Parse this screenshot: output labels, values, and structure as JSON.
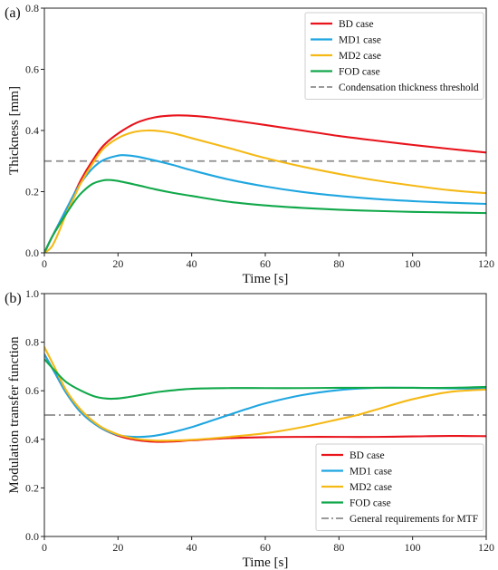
{
  "panels": [
    "(a)",
    "(b)"
  ],
  "chart_data": [
    {
      "type": "line",
      "panel_label": "(a)",
      "xlabel": "Time [s]",
      "ylabel": "Thickness [mm]",
      "xlim": [
        0,
        120
      ],
      "ylim": [
        0,
        0.8
      ],
      "xticks": [
        0,
        20,
        40,
        60,
        80,
        100,
        120
      ],
      "yticks": [
        0.0,
        0.2,
        0.4,
        0.6,
        0.8
      ],
      "xtick_labels": [
        "0",
        "20",
        "40",
        "60",
        "80",
        "100",
        "120"
      ],
      "ytick_labels": [
        "0.0",
        "0.2",
        "0.4",
        "0.6",
        "0.8"
      ],
      "grid": false,
      "legend_position": "top-right",
      "series": [
        {
          "name": "BD case",
          "color": "#e8131b",
          "dash": "",
          "x": [
            0,
            2,
            5,
            8,
            10,
            13,
            16,
            20,
            25,
            30,
            35,
            40,
            45,
            50,
            60,
            70,
            80,
            90,
            100,
            110,
            120
          ],
          "y": [
            0.0,
            0.05,
            0.12,
            0.19,
            0.24,
            0.3,
            0.35,
            0.39,
            0.425,
            0.443,
            0.449,
            0.448,
            0.443,
            0.435,
            0.418,
            0.4,
            0.382,
            0.367,
            0.353,
            0.34,
            0.328
          ]
        },
        {
          "name": "MD1 case",
          "color": "#1fa6e0",
          "dash": "",
          "x": [
            0,
            2,
            5,
            8,
            10,
            13,
            16,
            20,
            22,
            25,
            30,
            35,
            40,
            50,
            60,
            70,
            80,
            90,
            100,
            110,
            120
          ],
          "y": [
            0.0,
            0.05,
            0.12,
            0.19,
            0.23,
            0.275,
            0.303,
            0.318,
            0.319,
            0.315,
            0.302,
            0.287,
            0.27,
            0.24,
            0.217,
            0.199,
            0.186,
            0.176,
            0.169,
            0.164,
            0.16
          ]
        },
        {
          "name": "MD2 case",
          "color": "#f5b916",
          "dash": "",
          "x": [
            0,
            2,
            4,
            6,
            8,
            10,
            13,
            16,
            20,
            24,
            28,
            32,
            36,
            40,
            50,
            60,
            70,
            80,
            90,
            100,
            110,
            120
          ],
          "y": [
            0.0,
            0.02,
            0.07,
            0.13,
            0.18,
            0.23,
            0.29,
            0.34,
            0.375,
            0.394,
            0.4,
            0.397,
            0.388,
            0.375,
            0.343,
            0.31,
            0.282,
            0.258,
            0.237,
            0.22,
            0.205,
            0.195
          ]
        },
        {
          "name": "FOD case",
          "color": "#11a84a",
          "dash": "",
          "x": [
            0,
            2,
            5,
            8,
            10,
            13,
            16,
            18,
            20,
            25,
            30,
            35,
            40,
            50,
            60,
            70,
            80,
            90,
            100,
            110,
            120
          ],
          "y": [
            0.0,
            0.05,
            0.11,
            0.165,
            0.195,
            0.225,
            0.237,
            0.238,
            0.235,
            0.222,
            0.208,
            0.196,
            0.186,
            0.167,
            0.155,
            0.147,
            0.141,
            0.137,
            0.134,
            0.132,
            0.13
          ]
        },
        {
          "name": "Condensation thickness threshold",
          "color": "#8c8c8c",
          "dash": "8 5",
          "x": [
            0,
            120
          ],
          "y": [
            0.3,
            0.3
          ]
        }
      ]
    },
    {
      "type": "line",
      "panel_label": "(b)",
      "xlabel": "Time [s]",
      "ylabel": "Modulation transfer function",
      "xlim": [
        0,
        120
      ],
      "ylim": [
        0,
        1.0
      ],
      "xticks": [
        0,
        20,
        40,
        60,
        80,
        100,
        120
      ],
      "yticks": [
        0.0,
        0.2,
        0.4,
        0.6,
        0.8,
        1.0
      ],
      "xtick_labels": [
        "0",
        "20",
        "40",
        "60",
        "80",
        "100",
        "120"
      ],
      "ytick_labels": [
        "0.0",
        "0.2",
        "0.4",
        "0.6",
        "0.8",
        "1.0"
      ],
      "grid": false,
      "legend_position": "bottom-right",
      "series": [
        {
          "name": "BD case",
          "color": "#e8131b",
          "dash": "",
          "x": [
            0,
            3,
            6,
            10,
            15,
            20,
            25,
            30,
            35,
            40,
            50,
            60,
            70,
            80,
            90,
            100,
            110,
            120
          ],
          "y": [
            0.75,
            0.67,
            0.59,
            0.51,
            0.45,
            0.415,
            0.397,
            0.39,
            0.391,
            0.396,
            0.405,
            0.409,
            0.41,
            0.41,
            0.41,
            0.412,
            0.414,
            0.413
          ]
        },
        {
          "name": "MD1 case",
          "color": "#1fa6e0",
          "dash": "",
          "x": [
            0,
            3,
            6,
            10,
            15,
            20,
            25,
            30,
            35,
            40,
            45,
            50,
            55,
            60,
            70,
            80,
            90,
            100,
            110,
            120
          ],
          "y": [
            0.75,
            0.67,
            0.59,
            0.51,
            0.45,
            0.418,
            0.41,
            0.415,
            0.43,
            0.45,
            0.475,
            0.5,
            0.525,
            0.548,
            0.582,
            0.603,
            0.612,
            0.612,
            0.61,
            0.608
          ]
        },
        {
          "name": "MD2 case",
          "color": "#f5b916",
          "dash": "",
          "x": [
            0,
            3,
            6,
            10,
            15,
            20,
            25,
            30,
            35,
            40,
            50,
            60,
            70,
            80,
            85,
            90,
            100,
            110,
            120
          ],
          "y": [
            0.78,
            0.69,
            0.6,
            0.52,
            0.455,
            0.42,
            0.402,
            0.395,
            0.395,
            0.398,
            0.41,
            0.425,
            0.45,
            0.483,
            0.5,
            0.522,
            0.565,
            0.595,
            0.605
          ]
        },
        {
          "name": "FOD case",
          "color": "#11a84a",
          "dash": "",
          "x": [
            0,
            3,
            6,
            10,
            14,
            18,
            22,
            27,
            32,
            40,
            50,
            60,
            70,
            80,
            90,
            100,
            110,
            120
          ],
          "y": [
            0.73,
            0.68,
            0.635,
            0.6,
            0.575,
            0.567,
            0.572,
            0.585,
            0.597,
            0.608,
            0.611,
            0.611,
            0.611,
            0.612,
            0.612,
            0.612,
            0.612,
            0.616
          ]
        },
        {
          "name": "General requirements for MTF",
          "color": "#8c8c8c",
          "dash": "12 4 2 4",
          "x": [
            0,
            120
          ],
          "y": [
            0.5,
            0.5
          ]
        }
      ]
    }
  ]
}
